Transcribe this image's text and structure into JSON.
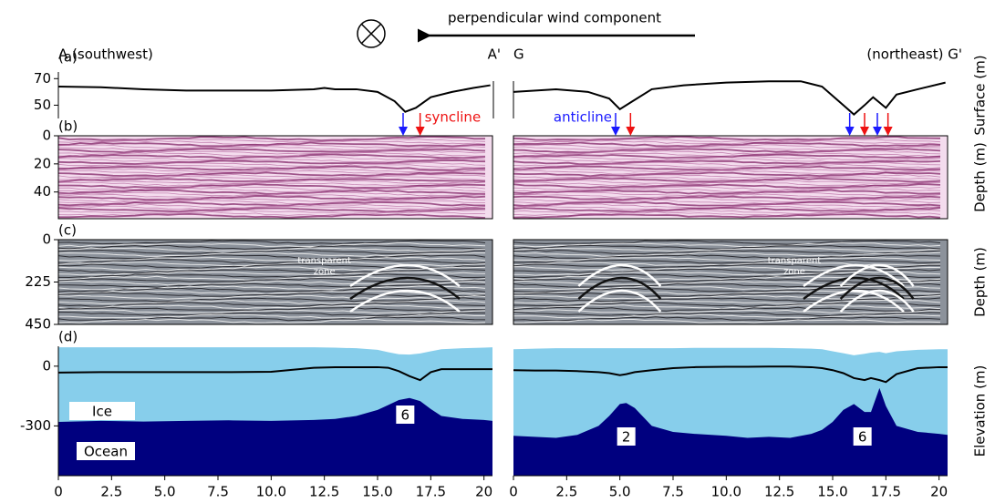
{
  "figure": {
    "title": "perpendicular  wind component",
    "left_start": "A (southwest)",
    "left_end": "A'",
    "right_start": "G",
    "right_end": "(northeast) G'"
  },
  "chart_data": [
    {
      "type": "line",
      "panel_label": "(a)",
      "ylabel": "Surface (m)",
      "xlim": [
        0,
        20.4
      ],
      "ylim": [
        40,
        75
      ],
      "yticks": [
        50,
        70
      ],
      "color": "#000000",
      "segments": [
        {
          "x": [
            0,
            2,
            4,
            6,
            8,
            10,
            12,
            12.5,
            13,
            14,
            15,
            15.8,
            16.3,
            16.8,
            17.5,
            18.5,
            19.5,
            20.3
          ],
          "values": [
            64,
            63.5,
            62,
            61,
            61,
            61,
            62,
            63,
            62,
            62,
            60,
            53,
            45,
            48,
            56,
            60,
            63,
            65
          ]
        },
        {
          "x": [
            0,
            2,
            3.5,
            4.5,
            5,
            5.5,
            6.5,
            8,
            10,
            12,
            13.5,
            14.5,
            15.5,
            16,
            16.5,
            16.9,
            17.2,
            17.5,
            18,
            19,
            20.3
          ],
          "values": [
            60,
            62,
            60,
            55,
            47,
            52,
            62,
            65,
            67,
            68,
            68,
            64,
            50,
            43,
            50,
            56,
            52,
            48,
            58,
            62,
            67
          ]
        }
      ]
    },
    {
      "type": "image",
      "panel_label": "(b)",
      "ylabel": "Depth (m)",
      "xlim": [
        0,
        20.4
      ],
      "ylim": [
        0,
        59
      ],
      "y_inverted": true,
      "yticks": [
        0,
        20,
        40
      ],
      "syncline": "syncline",
      "anticline": "anticline",
      "arrows": [
        [
          {
            "x": 16.2,
            "color": "#1a1aff"
          },
          {
            "x": 17.0,
            "color": "#ee1111"
          }
        ],
        [
          {
            "x": 4.8,
            "color": "#1a1aff"
          },
          {
            "x": 5.5,
            "color": "#ee1111"
          },
          {
            "x": 15.8,
            "color": "#1a1aff"
          },
          {
            "x": 16.5,
            "color": "#ee1111"
          },
          {
            "x": 17.1,
            "color": "#1a1aff"
          },
          {
            "x": 17.6,
            "color": "#ee1111"
          }
        ]
      ]
    },
    {
      "type": "image",
      "panel_label": "(c)",
      "ylabel": "Depth (m)",
      "xlim": [
        0,
        20.4
      ],
      "ylim": [
        0,
        450
      ],
      "y_inverted": true,
      "yticks": [
        0,
        225,
        450
      ],
      "notes": [
        [
          "transparent",
          "zone"
        ],
        [
          "transparent",
          "zone"
        ]
      ]
    },
    {
      "type": "area",
      "panel_label": "(d)",
      "ylabel": "Elevation (m)",
      "xlim": [
        0,
        20.4
      ],
      "ylim": [
        -550,
        100
      ],
      "yticks": [
        0,
        -300
      ],
      "xticks": [
        0,
        2.5,
        {
          "value": 5,
          "label": "5.0"
        },
        7.5,
        {
          "value": 10,
          "label": "10.0"
        },
        12.5,
        {
          "value": 15,
          "label": "15.0"
        },
        17.5,
        20
      ],
      "ice_color": "#87ceeb",
      "ocean_color": "#00007f",
      "ice_label": "Ice",
      "ocean_label": "Ocean",
      "peak_labels": [
        "6",
        "2",
        "6"
      ],
      "segments": [
        {
          "x": [
            0,
            2,
            4,
            6,
            8,
            10,
            12,
            13,
            14,
            15,
            15.5,
            16,
            16.5,
            17,
            17.5,
            18,
            19,
            20,
            20.4
          ],
          "ice": [
            95,
            95,
            95,
            95,
            95,
            95,
            95,
            93,
            90,
            82,
            70,
            60,
            58,
            64,
            75,
            85,
            90,
            93,
            95
          ],
          "ocean": [
            -280,
            -275,
            -278,
            -275,
            -272,
            -275,
            -270,
            -265,
            -250,
            -220,
            -195,
            -170,
            -160,
            -175,
            -215,
            -250,
            -265,
            -270,
            -275
          ],
          "layer": [
            -32,
            -30,
            -30,
            -30,
            -30,
            -28,
            -8,
            -5,
            -5,
            -5,
            -8,
            -25,
            -50,
            -70,
            -30,
            -15,
            -15,
            -15,
            -15
          ]
        },
        {
          "x": [
            0,
            1,
            2,
            3,
            4,
            4.5,
            5,
            5.3,
            5.7,
            6.5,
            7.5,
            8.5,
            10,
            11,
            12,
            13,
            14,
            14.5,
            15,
            15.5,
            16,
            16.5,
            16.8,
            17.2,
            17.5,
            18,
            19,
            20,
            20.4
          ],
          "ice": [
            85,
            88,
            90,
            90,
            90,
            90,
            90,
            90,
            90,
            90,
            90,
            92,
            92,
            92,
            92,
            90,
            88,
            85,
            75,
            65,
            55,
            62,
            68,
            72,
            65,
            75,
            82,
            85,
            85
          ],
          "ocean": [
            -350,
            -355,
            -360,
            -345,
            -300,
            -250,
            -190,
            -185,
            -210,
            -300,
            -330,
            -340,
            -350,
            -360,
            -355,
            -360,
            -340,
            -320,
            -280,
            -220,
            -190,
            -230,
            -230,
            -110,
            -200,
            -300,
            -330,
            -340,
            -345
          ],
          "layer": [
            -20,
            -22,
            -22,
            -25,
            -30,
            -35,
            -45,
            -40,
            -30,
            -20,
            -10,
            -5,
            -3,
            -3,
            -2,
            -2,
            -5,
            -10,
            -20,
            -35,
            -60,
            -70,
            -60,
            -70,
            -80,
            -40,
            -10,
            -5,
            -5
          ]
        }
      ]
    }
  ]
}
